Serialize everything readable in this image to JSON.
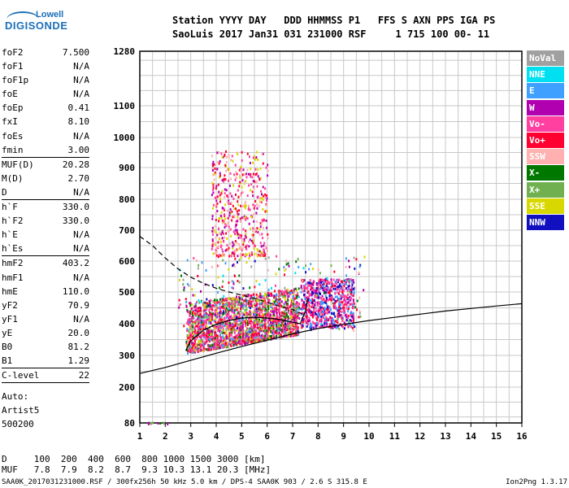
{
  "logo": {
    "top": "Lowell",
    "main": "DIGISONDE"
  },
  "header": {
    "line1": "Station YYYY DAY   DDD HHMMSS P1   FFS S AXN PPS IGA PS",
    "line2": "SaoLuis 2017 Jan31 031 231000 RSF     1 715 100 00- 11"
  },
  "params": [
    {
      "name": "foF2",
      "value": "7.500"
    },
    {
      "name": "foF1",
      "value": "N/A"
    },
    {
      "name": "foF1p",
      "value": "N/A"
    },
    {
      "name": "foE",
      "value": "N/A"
    },
    {
      "name": "foEp",
      "value": "0.41"
    },
    {
      "name": "fxI",
      "value": "8.10"
    },
    {
      "name": "foEs",
      "value": "N/A"
    },
    {
      "name": "fmin",
      "value": "3.00",
      "sep": true
    },
    {
      "name": "MUF(D)",
      "value": "20.28"
    },
    {
      "name": "M(D)",
      "value": "2.70"
    },
    {
      "name": "D",
      "value": "N/A",
      "sep": true
    },
    {
      "name": "h`F",
      "value": "330.0"
    },
    {
      "name": "h`F2",
      "value": "330.0"
    },
    {
      "name": "h`E",
      "value": "N/A"
    },
    {
      "name": "h`Es",
      "value": "N/A",
      "sep": true
    },
    {
      "name": "hmF2",
      "value": "403.2"
    },
    {
      "name": "hmF1",
      "value": "N/A"
    },
    {
      "name": "hmE",
      "value": "110.0"
    },
    {
      "name": "yF2",
      "value": "70.9"
    },
    {
      "name": "yF1",
      "value": "N/A"
    },
    {
      "name": "yE",
      "value": "20.0"
    },
    {
      "name": "B0",
      "value": "81.2"
    },
    {
      "name": "B1",
      "value": "1.29",
      "sep": true
    },
    {
      "name": "C-level",
      "value": "22",
      "sep": true
    }
  ],
  "auto": [
    "Auto:",
    "Artist5",
    "500200"
  ],
  "legend": [
    {
      "label": "NoVal",
      "color": "#a0a0a0"
    },
    {
      "label": "NNE",
      "color": "#00e0f0"
    },
    {
      "label": "E",
      "color": "#3fa0ff"
    },
    {
      "label": "W",
      "color": "#b000b0"
    },
    {
      "label": "Vo-",
      "color": "#ff40a0"
    },
    {
      "label": "Vo+",
      "color": "#ff0030"
    },
    {
      "label": "SSW",
      "color": "#ffb0b0"
    },
    {
      "label": "X-",
      "color": "#007800"
    },
    {
      "label": "X+",
      "color": "#70b050"
    },
    {
      "label": "SSE",
      "color": "#d8d800"
    },
    {
      "label": "NNW",
      "color": "#1010c0"
    }
  ],
  "bottom": {
    "line1": "D     100  200  400  600  800 1000 1500 3000 [km]",
    "line2": "MUF   7.8  7.9  8.2  8.7  9.3 10.3 13.1 20.3 [MHz]"
  },
  "footer": "SAA0K_2017031231000.RSF / 300fx256h 50 kHz 5.0 km / DPS-4 SAA0K 903 / 2.6 S 315.8 E",
  "footer_right": "Ion2Png 1.3.17",
  "chart_data": {
    "type": "scatter",
    "xlabel": "",
    "ylabel": "",
    "xlim": [
      1,
      16
    ],
    "ylim": [
      80,
      1280
    ],
    "xticks": [
      1,
      2,
      3,
      4,
      5,
      6,
      7,
      8,
      9,
      10,
      11,
      12,
      13,
      14,
      15,
      16
    ],
    "yticks": [
      80,
      200,
      300,
      400,
      500,
      600,
      700,
      800,
      900,
      1000,
      1100,
      1280
    ],
    "grid": true,
    "clusters": [
      {
        "name": "o-trace",
        "x": [
          2.8,
          7.2
        ],
        "y": [
          300,
          500
        ]
      },
      {
        "name": "x-trace",
        "x": [
          7.3,
          9.4
        ],
        "y": [
          390,
          540
        ]
      },
      {
        "name": "spread",
        "x": [
          3.8,
          6.0
        ],
        "y": [
          650,
          960
        ]
      }
    ],
    "curves": [
      {
        "name": "profile-dashed",
        "style": "dashed",
        "points": [
          [
            1.0,
            680
          ],
          [
            1.5,
            650
          ],
          [
            2.0,
            610
          ],
          [
            2.5,
            575
          ],
          [
            3.0,
            548
          ],
          [
            3.5,
            528
          ],
          [
            4.0,
            512
          ],
          [
            4.5,
            500
          ],
          [
            5.0,
            490
          ],
          [
            5.5,
            480
          ],
          [
            6.0,
            468
          ],
          [
            6.5,
            455
          ],
          [
            7.0,
            445
          ],
          [
            7.4,
            430
          ]
        ]
      },
      {
        "name": "virtual-height",
        "style": "solid",
        "points": [
          [
            2.8,
            315
          ],
          [
            3.0,
            345
          ],
          [
            3.5,
            380
          ],
          [
            4.0,
            398
          ],
          [
            4.5,
            410
          ],
          [
            5.0,
            418
          ],
          [
            5.5,
            420
          ],
          [
            6.0,
            418
          ],
          [
            6.5,
            413
          ],
          [
            7.0,
            405
          ],
          [
            7.3,
            400
          ],
          [
            7.5,
            440
          ],
          [
            7.6,
            480
          ]
        ]
      },
      {
        "name": "lower-curve",
        "style": "solid",
        "points": [
          [
            1.0,
            243
          ],
          [
            2.0,
            262
          ],
          [
            3.0,
            285
          ],
          [
            4.0,
            307
          ],
          [
            5.0,
            328
          ],
          [
            6.0,
            348
          ],
          [
            7.0,
            368
          ],
          [
            8.0,
            385
          ],
          [
            9.0,
            398
          ],
          [
            10.0,
            410
          ],
          [
            11.0,
            420
          ],
          [
            12.0,
            430
          ],
          [
            13.0,
            440
          ],
          [
            14.0,
            448
          ],
          [
            15.0,
            456
          ],
          [
            16.0,
            463
          ]
        ]
      }
    ]
  }
}
